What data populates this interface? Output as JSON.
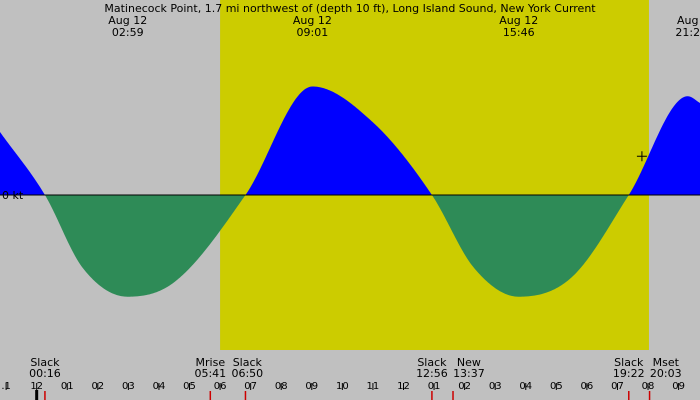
{
  "chart_data": {
    "type": "area",
    "title": "Matinecock Point, 1.7 mi northwest of (depth 10 ft), Long Island Sound, New York Current",
    "y_label": "0 kt",
    "x_range_hours": [
      -1.2,
      21.7
    ],
    "y_range_kt": [
      -1.6,
      1.6
    ],
    "daylight_hours": [
      6.0,
      20.03
    ],
    "colors": {
      "background": "#c0c0c0",
      "daylight": "#cccc00",
      "flood": "#0000ff",
      "ebb": "#2e8b57",
      "baseline": "#000000"
    },
    "current_series": [
      {
        "t": -1.2,
        "v": 0.65
      },
      {
        "t": 0.27,
        "v": 0.0
      },
      {
        "t": 1.5,
        "v": -0.75
      },
      {
        "t": 2.98,
        "v": -1.05
      },
      {
        "t": 4.5,
        "v": -0.9
      },
      {
        "t": 6.83,
        "v": 0.0
      },
      {
        "t": 9.02,
        "v": 1.12
      },
      {
        "t": 11.0,
        "v": 0.75
      },
      {
        "t": 12.93,
        "v": 0.0
      },
      {
        "t": 14.3,
        "v": -0.75
      },
      {
        "t": 15.77,
        "v": -1.05
      },
      {
        "t": 17.5,
        "v": -0.85
      },
      {
        "t": 19.37,
        "v": 0.0
      },
      {
        "t": 21.3,
        "v": 1.02
      },
      {
        "t": 21.7,
        "v": 0.95
      }
    ],
    "top_events": [
      {
        "date": "Aug 12",
        "time": "02:59",
        "t": 2.98
      },
      {
        "date": "Aug 12",
        "time": "09:01",
        "t": 9.02
      },
      {
        "date": "Aug 12",
        "time": "15:46",
        "t": 15.77
      },
      {
        "date": "Aug",
        "time": "21:2",
        "t": 21.3
      }
    ],
    "bottom_events": [
      {
        "label": "Slack",
        "time": "00:16",
        "t": 0.27
      },
      {
        "label": "Mrise",
        "time": "05:41",
        "t": 5.68
      },
      {
        "label": "Slack",
        "time": "06:50",
        "t": 6.83
      },
      {
        "label": "Slack",
        "time": "12:56",
        "t": 12.93
      },
      {
        "label": "New",
        "time": "13:37",
        "t": 13.62
      },
      {
        "label": "Slack",
        "time": "19:22",
        "t": 19.37
      },
      {
        "label": "Mset",
        "time": "20:03",
        "t": 20.05
      }
    ],
    "hour_ticks": [
      {
        "label": ".1",
        "t": -1
      },
      {
        "label": "12",
        "t": 0
      },
      {
        "label": "01",
        "t": 1
      },
      {
        "label": "02",
        "t": 2
      },
      {
        "label": "03",
        "t": 3
      },
      {
        "label": "04",
        "t": 4
      },
      {
        "label": "05",
        "t": 5
      },
      {
        "label": "06",
        "t": 6
      },
      {
        "label": "07",
        "t": 7
      },
      {
        "label": "08",
        "t": 8
      },
      {
        "label": "09",
        "t": 9
      },
      {
        "label": "10",
        "t": 10
      },
      {
        "label": "11",
        "t": 11
      },
      {
        "label": "12",
        "t": 12
      },
      {
        "label": "01",
        "t": 13
      },
      {
        "label": "02",
        "t": 14
      },
      {
        "label": "03",
        "t": 15
      },
      {
        "label": "04",
        "t": 16
      },
      {
        "label": "05",
        "t": 17
      },
      {
        "label": "06",
        "t": 18
      },
      {
        "label": "07",
        "t": 19
      },
      {
        "label": "08",
        "t": 20
      },
      {
        "label": "09",
        "t": 21
      }
    ],
    "marker_ticks": [
      {
        "t": 0.27,
        "color": "#cc0000"
      },
      {
        "t": 5.68,
        "color": "#cc0000"
      },
      {
        "t": 6.83,
        "color": "#cc0000"
      },
      {
        "t": 12.93,
        "color": "#cc0000"
      },
      {
        "t": 13.62,
        "color": "#cc0000"
      },
      {
        "t": 19.37,
        "color": "#cc0000"
      },
      {
        "t": 20.05,
        "color": "#cc0000"
      }
    ],
    "midnight_marker_t": 0,
    "now_marker": {
      "t": 19.8,
      "v": 0.4
    }
  }
}
